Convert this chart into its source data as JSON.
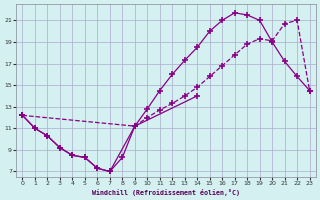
{
  "xlabel": "Windchill (Refroidissement éolien,°C)",
  "bg_color": "#d4f0f0",
  "grid_color": "#aaaacc",
  "line_color": "#880088",
  "xlim": [
    -0.5,
    23.5
  ],
  "ylim": [
    6.5,
    22.5
  ],
  "xticks": [
    0,
    1,
    2,
    3,
    4,
    5,
    6,
    7,
    8,
    9,
    10,
    11,
    12,
    13,
    14,
    15,
    16,
    17,
    18,
    19,
    20,
    21,
    22,
    23
  ],
  "yticks": [
    7,
    9,
    11,
    13,
    15,
    17,
    19,
    21
  ],
  "line1_x": [
    0,
    1,
    2,
    3,
    4,
    5,
    6,
    7,
    8,
    9,
    14
  ],
  "line1_y": [
    12.2,
    11.0,
    10.3,
    9.2,
    8.5,
    8.3,
    7.3,
    7.0,
    8.3,
    11.2,
    14.0
  ],
  "line2_x": [
    0,
    1,
    2,
    3,
    4,
    5,
    6,
    7,
    9,
    10,
    11,
    12,
    13,
    14,
    15,
    16,
    17,
    18,
    19,
    20,
    21,
    22,
    23
  ],
  "line2_y": [
    12.2,
    11.0,
    10.3,
    9.2,
    8.5,
    8.3,
    7.3,
    7.0,
    11.2,
    12.8,
    14.5,
    16.0,
    17.3,
    18.5,
    20.0,
    21.0,
    21.7,
    21.5,
    21.0,
    19.0,
    17.2,
    15.8,
    14.5
  ],
  "line3_x": [
    0,
    9,
    10,
    11,
    12,
    13,
    14,
    15,
    16,
    17,
    18,
    19,
    20,
    21,
    22,
    23
  ],
  "line3_y": [
    12.2,
    11.2,
    12.0,
    12.7,
    13.3,
    14.0,
    14.8,
    15.8,
    16.8,
    17.8,
    18.8,
    19.3,
    19.1,
    20.7,
    21.0,
    14.5
  ],
  "marker": "+",
  "markersize": 4,
  "linewidth": 0.9
}
